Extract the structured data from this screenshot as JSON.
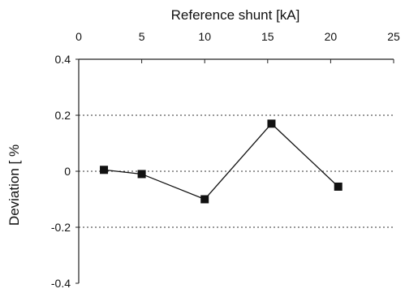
{
  "chart_data": {
    "type": "line",
    "xlabel": "Reference shunt [kA]",
    "ylabel": "Deviation [ %",
    "xlim": [
      0,
      25
    ],
    "ylim": [
      -0.4,
      0.4
    ],
    "x_ticks": [
      "0",
      "5",
      "10",
      "15",
      "20",
      "25"
    ],
    "y_ticks": [
      "0.4",
      "0.2",
      "0",
      "-0.2",
      "-0.4"
    ],
    "x_axis_position": "top",
    "grid": "horizontal dotted",
    "series": [
      {
        "x": [
          2,
          5,
          10,
          15.3,
          20.6
        ],
        "y": [
          0.005,
          -0.01,
          -0.1,
          0.17,
          -0.055
        ],
        "marker": "square",
        "color": "#111111"
      }
    ]
  }
}
